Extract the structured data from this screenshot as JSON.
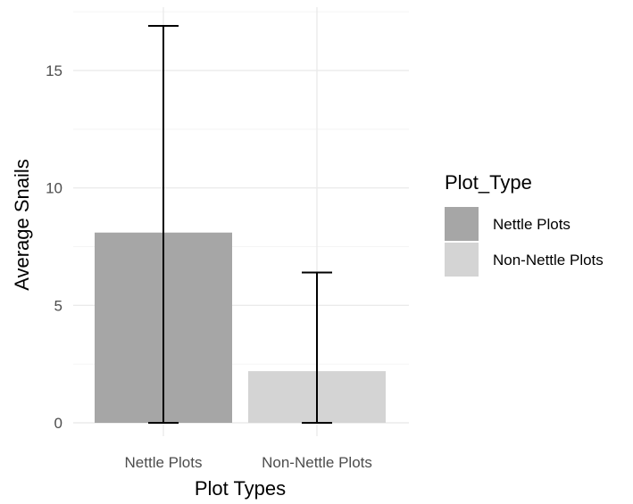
{
  "chart_data": {
    "type": "bar",
    "categories": [
      "Nettle Plots",
      "Non-Nettle Plots"
    ],
    "values": [
      8.1,
      2.2
    ],
    "error_bars": [
      {
        "lower": 0,
        "upper": 16.9
      },
      {
        "lower": 0,
        "upper": 6.4
      }
    ],
    "xlabel": "Plot Types",
    "ylabel": "Average Snails",
    "ylim": [
      0,
      17.5
    ],
    "yticks": [
      0,
      5,
      10,
      15
    ],
    "grid": true,
    "legend": {
      "title": "Plot_Type",
      "position": "right",
      "entries": [
        "Nettle Plots",
        "Non-Nettle Plots"
      ]
    },
    "colors": {
      "Nettle Plots": "#a6a6a6",
      "Non-Nettle Plots": "#d4d4d4",
      "error_bar": "#000000",
      "grid": "#ebebeb"
    }
  }
}
